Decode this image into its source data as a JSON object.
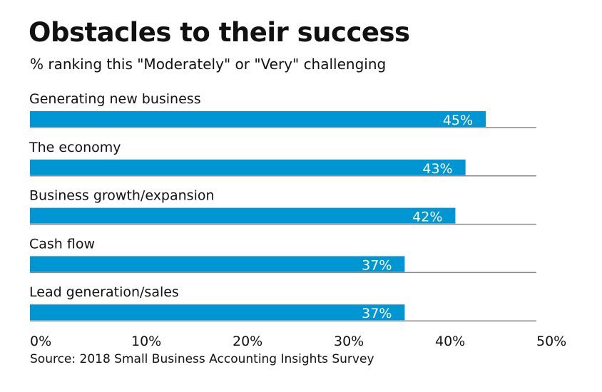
{
  "chart_data": {
    "type": "bar",
    "orientation": "horizontal",
    "title": "Obstacles to their success",
    "subtitle": "% ranking this \"Moderately\" or \"Very\" challenging",
    "categories": [
      "Generating new business",
      "The economy",
      "Business growth/expansion",
      "Cash flow",
      "Lead generation/sales"
    ],
    "values": [
      45,
      43,
      42,
      37,
      37
    ],
    "data_labels": [
      "45%",
      "43%",
      "42%",
      "37%",
      "37%"
    ],
    "xlim": [
      0,
      50
    ],
    "ticks": [
      0,
      10,
      20,
      30,
      40,
      50
    ],
    "tick_labels": [
      "0%",
      "10%",
      "20%",
      "30%",
      "40%",
      "50%"
    ],
    "source": "Source: 2018 Small Business Accounting Insights Survey",
    "bar_color": "#0095d3",
    "grid": false
  }
}
